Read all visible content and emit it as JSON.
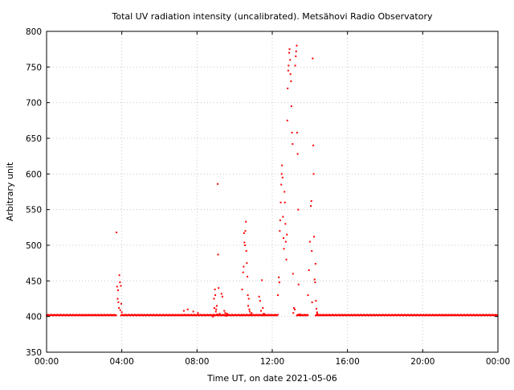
{
  "chart_data": {
    "type": "scatter",
    "title": "Total UV radiation intensity (uncalibrated). Metsähovi Radio Observatory",
    "xlabel": "Time UT, on date 2021-05-06",
    "ylabel": "Arbitrary unit",
    "x_unit": "hours UT",
    "xlim": [
      0,
      24
    ],
    "ylim": [
      350,
      800
    ],
    "x_ticks": [
      {
        "value": 0,
        "label": "00:00"
      },
      {
        "value": 4,
        "label": "04:00"
      },
      {
        "value": 8,
        "label": "08:00"
      },
      {
        "value": 12,
        "label": "12:00"
      },
      {
        "value": 16,
        "label": "16:00"
      },
      {
        "value": 20,
        "label": "20:00"
      },
      {
        "value": 24,
        "label": "00:00"
      }
    ],
    "y_ticks": [
      350,
      400,
      450,
      500,
      550,
      600,
      650,
      700,
      750,
      800
    ],
    "grid": true,
    "marker_color": "#ff0000",
    "baseline_segments": [
      {
        "x_start": 0.0,
        "x_end": 3.7,
        "y": 402
      },
      {
        "x_start": 3.95,
        "x_end": 8.8,
        "y": 402
      },
      {
        "x_start": 8.8,
        "x_end": 10.4,
        "y": 402
      },
      {
        "x_start": 10.4,
        "x_end": 12.3,
        "y": 402
      },
      {
        "x_start": 13.3,
        "x_end": 13.9,
        "y": 402
      },
      {
        "x_start": 14.3,
        "x_end": 24.0,
        "y": 402
      }
    ],
    "points": [
      [
        3.72,
        518
      ],
      [
        3.75,
        442
      ],
      [
        3.78,
        425
      ],
      [
        3.8,
        437
      ],
      [
        3.82,
        420
      ],
      [
        3.85,
        412
      ],
      [
        3.87,
        458
      ],
      [
        3.9,
        448
      ],
      [
        3.92,
        409
      ],
      [
        3.95,
        443
      ],
      [
        3.97,
        418
      ],
      [
        4.0,
        406
      ],
      [
        7.3,
        408
      ],
      [
        7.5,
        410
      ],
      [
        7.8,
        407
      ],
      [
        8.05,
        405
      ],
      [
        8.85,
        400
      ],
      [
        8.88,
        402
      ],
      [
        8.9,
        425
      ],
      [
        8.92,
        412
      ],
      [
        8.95,
        438
      ],
      [
        8.97,
        430
      ],
      [
        9.0,
        407
      ],
      [
        9.02,
        410
      ],
      [
        9.05,
        415
      ],
      [
        9.07,
        403
      ],
      [
        9.1,
        586
      ],
      [
        9.12,
        487
      ],
      [
        9.15,
        440
      ],
      [
        9.2,
        404
      ],
      [
        9.3,
        432
      ],
      [
        9.35,
        428
      ],
      [
        9.4,
        402
      ],
      [
        9.45,
        408
      ],
      [
        9.5,
        405
      ],
      [
        9.55,
        401
      ],
      [
        9.6,
        404
      ],
      [
        9.65,
        402
      ],
      [
        10.4,
        438
      ],
      [
        10.45,
        462
      ],
      [
        10.48,
        470
      ],
      [
        10.5,
        517
      ],
      [
        10.52,
        504
      ],
      [
        10.55,
        500
      ],
      [
        10.57,
        520
      ],
      [
        10.6,
        533
      ],
      [
        10.62,
        492
      ],
      [
        10.65,
        475
      ],
      [
        10.68,
        456
      ],
      [
        10.7,
        430
      ],
      [
        10.72,
        415
      ],
      [
        10.75,
        425
      ],
      [
        10.78,
        410
      ],
      [
        10.8,
        407
      ],
      [
        10.85,
        403
      ],
      [
        10.9,
        405
      ],
      [
        11.2,
        402
      ],
      [
        11.3,
        428
      ],
      [
        11.35,
        422
      ],
      [
        11.4,
        408
      ],
      [
        11.45,
        451
      ],
      [
        11.5,
        412
      ],
      [
        11.55,
        404
      ],
      [
        11.6,
        403
      ],
      [
        12.3,
        430
      ],
      [
        12.35,
        455
      ],
      [
        12.38,
        448
      ],
      [
        12.4,
        520
      ],
      [
        12.42,
        535
      ],
      [
        12.45,
        560
      ],
      [
        12.48,
        585
      ],
      [
        12.5,
        600
      ],
      [
        12.52,
        612
      ],
      [
        12.55,
        595
      ],
      [
        12.57,
        540
      ],
      [
        12.6,
        510
      ],
      [
        12.62,
        495
      ],
      [
        12.65,
        575
      ],
      [
        12.67,
        560
      ],
      [
        12.7,
        530
      ],
      [
        12.72,
        505
      ],
      [
        12.75,
        480
      ],
      [
        12.78,
        515
      ],
      [
        12.8,
        675
      ],
      [
        12.82,
        720
      ],
      [
        12.85,
        745
      ],
      [
        12.87,
        752
      ],
      [
        12.9,
        770
      ],
      [
        12.92,
        775
      ],
      [
        12.95,
        760
      ],
      [
        12.97,
        740
      ],
      [
        13.0,
        730
      ],
      [
        13.02,
        695
      ],
      [
        13.05,
        658
      ],
      [
        13.08,
        642
      ],
      [
        13.1,
        460
      ],
      [
        13.12,
        405
      ],
      [
        13.15,
        412
      ],
      [
        13.2,
        410
      ],
      [
        13.22,
        752
      ],
      [
        13.25,
        765
      ],
      [
        13.27,
        772
      ],
      [
        13.3,
        780
      ],
      [
        13.32,
        658
      ],
      [
        13.35,
        628
      ],
      [
        13.38,
        550
      ],
      [
        13.4,
        445
      ],
      [
        13.45,
        403
      ],
      [
        13.5,
        402
      ],
      [
        13.9,
        430
      ],
      [
        13.95,
        465
      ],
      [
        14.0,
        505
      ],
      [
        14.05,
        555
      ],
      [
        14.08,
        562
      ],
      [
        14.1,
        492
      ],
      [
        14.12,
        420
      ],
      [
        14.15,
        762
      ],
      [
        14.18,
        640
      ],
      [
        14.2,
        600
      ],
      [
        14.22,
        512
      ],
      [
        14.25,
        452
      ],
      [
        14.28,
        448
      ],
      [
        14.3,
        474
      ],
      [
        14.32,
        422
      ],
      [
        14.35,
        411
      ],
      [
        14.38,
        406
      ],
      [
        14.4,
        404
      ]
    ]
  }
}
